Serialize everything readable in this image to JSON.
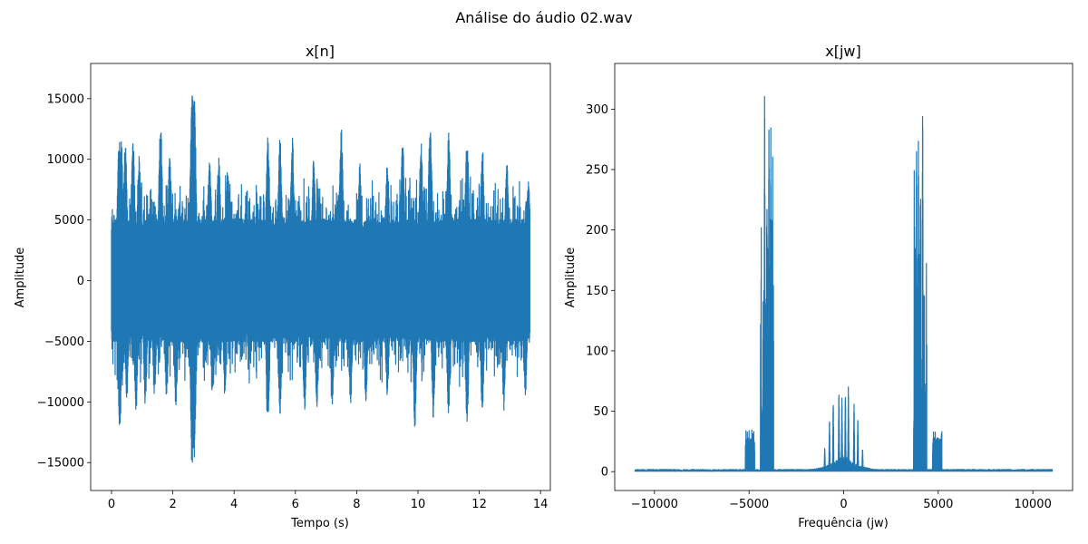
{
  "figure": {
    "suptitle": "Análise do áudio 02.wav"
  },
  "chart_data": [
    {
      "type": "line",
      "title": "x[n]",
      "xlabel": "Tempo (s)",
      "ylabel": "Amplitude",
      "xlim": [
        -0.68,
        14.32
      ],
      "ylim": [
        -17300,
        17900
      ],
      "xticks": [
        0,
        2,
        4,
        6,
        8,
        10,
        12,
        14
      ],
      "yticks": [
        -15000,
        -10000,
        -5000,
        0,
        5000,
        10000,
        15000
      ],
      "xtick_labels": [
        "0",
        "2",
        "4",
        "6",
        "8",
        "10",
        "12",
        "14"
      ],
      "ytick_labels": [
        "−15000",
        "−10000",
        "−5000",
        "0",
        "5000",
        "10000",
        "15000"
      ],
      "grid": false,
      "color": "#1f77b4",
      "series": [
        {
          "x_range": [
            0,
            13.65
          ],
          "clip_level": 5100,
          "peaks_positive": [
            [
              0.25,
              11800
            ],
            [
              0.32,
              11500
            ],
            [
              0.45,
              11600
            ],
            [
              0.7,
              12000
            ],
            [
              0.9,
              10400
            ],
            [
              1.6,
              13300
            ],
            [
              1.9,
              10400
            ],
            [
              2.63,
              16400
            ],
            [
              2.7,
              15200
            ],
            [
              3.2,
              10500
            ],
            [
              3.5,
              10200
            ],
            [
              3.8,
              9700
            ],
            [
              5.1,
              12200
            ],
            [
              5.5,
              11900
            ],
            [
              5.9,
              11900
            ],
            [
              6.6,
              10200
            ],
            [
              7.5,
              12800
            ],
            [
              8.1,
              9800
            ],
            [
              9.0,
              10300
            ],
            [
              9.5,
              11500
            ],
            [
              10.1,
              11600
            ],
            [
              10.4,
              13200
            ],
            [
              11.0,
              12300
            ],
            [
              11.6,
              12200
            ],
            [
              12.1,
              11300
            ],
            [
              12.9,
              9800
            ],
            [
              13.6,
              8500
            ]
          ],
          "peaks_negative": [
            [
              0.27,
              -12600
            ],
            [
              0.5,
              -9800
            ],
            [
              0.8,
              -11000
            ],
            [
              1.1,
              -10300
            ],
            [
              1.4,
              -9600
            ],
            [
              1.8,
              -9900
            ],
            [
              2.1,
              -10600
            ],
            [
              2.63,
              -15600
            ],
            [
              2.7,
              -14700
            ],
            [
              3.3,
              -10200
            ],
            [
              3.7,
              -9600
            ],
            [
              5.1,
              -12300
            ],
            [
              5.5,
              -11200
            ],
            [
              6.3,
              -11000
            ],
            [
              6.7,
              -10800
            ],
            [
              7.2,
              -10800
            ],
            [
              7.8,
              -10500
            ],
            [
              8.3,
              -10100
            ],
            [
              9.0,
              -9800
            ],
            [
              9.9,
              -12200
            ],
            [
              10.5,
              -11400
            ],
            [
              11.0,
              -11200
            ],
            [
              11.6,
              -12000
            ],
            [
              12.1,
              -10800
            ],
            [
              12.8,
              -10800
            ],
            [
              13.5,
              -9800
            ]
          ]
        }
      ]
    },
    {
      "type": "line",
      "title": "x[jw]",
      "xlabel": "Frequência (jw)",
      "ylabel": "Amplitude",
      "xlim": [
        -12100,
        12100
      ],
      "ylim": [
        -15.6,
        337.8
      ],
      "xticks": [
        -10000,
        -5000,
        0,
        5000,
        10000
      ],
      "yticks": [
        0,
        50,
        100,
        150,
        200,
        250,
        300
      ],
      "xtick_labels": [
        "−10000",
        "−5000",
        "0",
        "5000",
        "10000"
      ],
      "ytick_labels": [
        "0",
        "50",
        "100",
        "150",
        "200",
        "250",
        "300"
      ],
      "grid": false,
      "color": "#1f77b4",
      "series": [
        {
          "x_range": [
            -11025,
            11025
          ],
          "noise_floor": 1.5,
          "bands": [
            {
              "x": [
                -5200,
                -4700
              ],
              "max": 35
            },
            {
              "x": [
                -4400,
                -3700
              ],
              "max": 326,
              "peaks": [
                [
                  -4175,
                  326
                ],
                [
                  -3950,
                  292
                ],
                [
                  -3850,
                  291
                ],
                [
                  -4050,
                  232
                ],
                [
                  -4000,
                  165
                ],
                [
                  -4250,
                  153
                ]
              ]
            },
            {
              "x": [
                -2200,
                2200
              ],
              "max": 71,
              "peaks": [
                [
                  -250,
                  71
                ],
                [
                  250,
                  71
                ],
                [
                  -90,
                  66
                ],
                [
                  90,
                  66
                ],
                [
                  -550,
                  60
                ],
                [
                  550,
                  60
                ],
                [
                  -750,
                  45
                ],
                [
                  750,
                  45
                ],
                [
                  -1000,
                  20
                ],
                [
                  1000,
                  20
                ]
              ]
            },
            {
              "x": [
                3700,
                4400
              ],
              "max": 326,
              "peaks": [
                [
                  4175,
                  326
                ],
                [
                  3950,
                  292
                ],
                [
                  3850,
                  291
                ],
                [
                  4050,
                  232
                ],
                [
                  4000,
                  165
                ],
                [
                  4250,
                  153
                ]
              ]
            },
            {
              "x": [
                4700,
                5200
              ],
              "max": 35
            }
          ]
        }
      ]
    }
  ]
}
